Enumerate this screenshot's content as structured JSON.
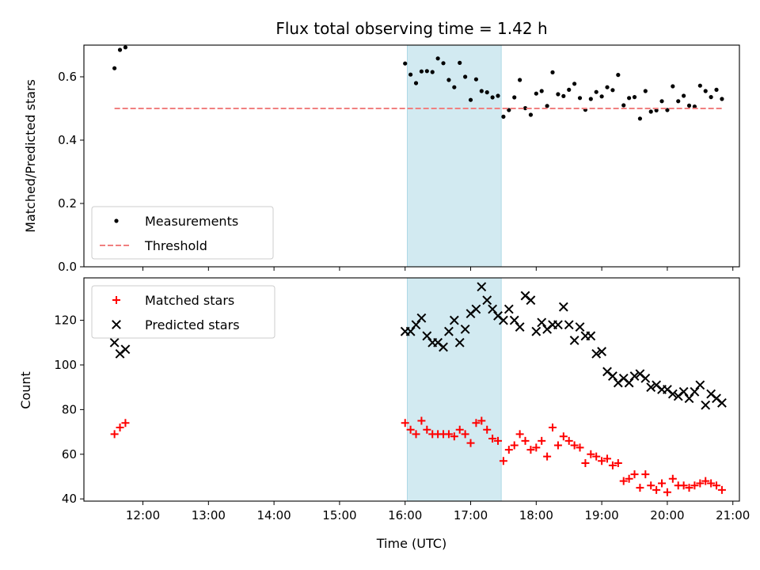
{
  "chart_data": {
    "type": "scatter",
    "title": "Flux total observing time = 1.42 h",
    "xlabel": "Time (UTC)",
    "x_unit": "hours UTC",
    "xlim": [
      "11:06",
      "21:06"
    ],
    "x_tick_labels": [
      "12:00",
      "13:00",
      "14:00",
      "15:00",
      "16:00",
      "17:00",
      "18:00",
      "19:00",
      "20:00",
      "21:00"
    ],
    "shaded_interval": [
      "16:02",
      "17:28"
    ],
    "shaded_color": "#add8e6",
    "panels": [
      {
        "id": "ratio",
        "ylabel": "Matched/Predicted stars",
        "ylim": [
          0,
          0.7
        ],
        "y_ticks": [
          "0.0",
          "0.2",
          "0.4",
          "0.6"
        ],
        "legend_position": "lower-left",
        "series": [
          {
            "name": "Measurements",
            "marker": "dot",
            "color": "#000000",
            "points": [
              [
                "11:34",
                0.627
              ],
              [
                "11:39",
                0.685
              ],
              [
                "11:44",
                0.693
              ],
              [
                "16:00",
                0.642
              ],
              [
                "16:05",
                0.607
              ],
              [
                "16:10",
                0.58
              ],
              [
                "16:15",
                0.617
              ],
              [
                "16:20",
                0.618
              ],
              [
                "16:25",
                0.615
              ],
              [
                "16:30",
                0.658
              ],
              [
                "16:35",
                0.643
              ],
              [
                "16:40",
                0.59
              ],
              [
                "16:45",
                0.567
              ],
              [
                "16:50",
                0.644
              ],
              [
                "16:55",
                0.6
              ],
              [
                "17:00",
                0.527
              ],
              [
                "17:05",
                0.592
              ],
              [
                "17:10",
                0.555
              ],
              [
                "17:15",
                0.551
              ],
              [
                "17:20",
                0.535
              ],
              [
                "17:25",
                0.54
              ],
              [
                "17:30",
                0.474
              ],
              [
                "17:35",
                0.495
              ],
              [
                "17:40",
                0.535
              ],
              [
                "17:45",
                0.59
              ],
              [
                "17:50",
                0.501
              ],
              [
                "17:55",
                0.48
              ],
              [
                "18:00",
                0.547
              ],
              [
                "18:05",
                0.555
              ],
              [
                "18:10",
                0.508
              ],
              [
                "18:15",
                0.614
              ],
              [
                "18:20",
                0.545
              ],
              [
                "18:25",
                0.539
              ],
              [
                "18:30",
                0.559
              ],
              [
                "18:35",
                0.578
              ],
              [
                "18:40",
                0.533
              ],
              [
                "18:45",
                0.496
              ],
              [
                "18:50",
                0.53
              ],
              [
                "18:55",
                0.552
              ],
              [
                "19:00",
                0.538
              ],
              [
                "19:05",
                0.567
              ],
              [
                "19:10",
                0.558
              ],
              [
                "19:15",
                0.606
              ],
              [
                "19:20",
                0.51
              ],
              [
                "19:25",
                0.533
              ],
              [
                "19:30",
                0.536
              ],
              [
                "19:35",
                0.468
              ],
              [
                "19:40",
                0.555
              ],
              [
                "19:45",
                0.49
              ],
              [
                "19:50",
                0.494
              ],
              [
                "19:55",
                0.523
              ],
              [
                "20:00",
                0.495
              ],
              [
                "20:05",
                0.57
              ],
              [
                "20:10",
                0.523
              ],
              [
                "20:15",
                0.54
              ],
              [
                "20:20",
                0.509
              ],
              [
                "20:25",
                0.506
              ],
              [
                "20:30",
                0.572
              ],
              [
                "20:35",
                0.555
              ],
              [
                "20:40",
                0.536
              ],
              [
                "20:45",
                0.559
              ],
              [
                "20:50",
                0.53
              ]
            ]
          },
          {
            "name": "Threshold",
            "marker": "dashed-line",
            "color": "#f08080",
            "points": [
              [
                "11:34",
                0.5
              ],
              [
                "20:50",
                0.5
              ]
            ]
          }
        ]
      },
      {
        "id": "counts",
        "ylabel": "Count",
        "ylim": [
          39,
          139
        ],
        "y_ticks": [
          "40",
          "60",
          "80",
          "100",
          "120"
        ],
        "legend_position": "upper-left",
        "series": [
          {
            "name": "Matched stars",
            "marker": "plus",
            "color": "#ff0000",
            "points": [
              [
                "11:34",
                69
              ],
              [
                "11:39",
                72
              ],
              [
                "11:44",
                74
              ],
              [
                "16:00",
                74
              ],
              [
                "16:05",
                71
              ],
              [
                "16:10",
                69
              ],
              [
                "16:15",
                75
              ],
              [
                "16:20",
                71
              ],
              [
                "16:25",
                69
              ],
              [
                "16:30",
                69
              ],
              [
                "16:35",
                69
              ],
              [
                "16:40",
                69
              ],
              [
                "16:45",
                68
              ],
              [
                "16:50",
                71
              ],
              [
                "16:55",
                69
              ],
              [
                "17:00",
                65
              ],
              [
                "17:05",
                74
              ],
              [
                "17:10",
                75
              ],
              [
                "17:15",
                71
              ],
              [
                "17:20",
                67
              ],
              [
                "17:25",
                66
              ],
              [
                "17:30",
                57
              ],
              [
                "17:35",
                62
              ],
              [
                "17:40",
                64
              ],
              [
                "17:45",
                69
              ],
              [
                "17:50",
                66
              ],
              [
                "17:55",
                62
              ],
              [
                "18:00",
                63
              ],
              [
                "18:05",
                66
              ],
              [
                "18:10",
                59
              ],
              [
                "18:15",
                72
              ],
              [
                "18:20",
                64
              ],
              [
                "18:25",
                68
              ],
              [
                "18:30",
                66
              ],
              [
                "18:35",
                64
              ],
              [
                "18:40",
                63
              ],
              [
                "18:45",
                56
              ],
              [
                "18:50",
                60
              ],
              [
                "18:55",
                59
              ],
              [
                "19:00",
                57
              ],
              [
                "19:05",
                58
              ],
              [
                "19:10",
                55
              ],
              [
                "19:15",
                56
              ],
              [
                "19:20",
                48
              ],
              [
                "19:25",
                49
              ],
              [
                "19:30",
                51
              ],
              [
                "19:35",
                45
              ],
              [
                "19:40",
                51
              ],
              [
                "19:45",
                46
              ],
              [
                "19:50",
                44
              ],
              [
                "19:55",
                47
              ],
              [
                "20:00",
                43
              ],
              [
                "20:05",
                49
              ],
              [
                "20:10",
                46
              ],
              [
                "20:15",
                46
              ],
              [
                "20:20",
                45
              ],
              [
                "20:25",
                46
              ],
              [
                "20:30",
                47
              ],
              [
                "20:35",
                48
              ],
              [
                "20:40",
                47
              ],
              [
                "20:45",
                46
              ],
              [
                "20:50",
                44
              ]
            ]
          },
          {
            "name": "Predicted stars",
            "marker": "x",
            "color": "#000000",
            "points": [
              [
                "11:34",
                110
              ],
              [
                "11:39",
                105
              ],
              [
                "11:44",
                107
              ],
              [
                "16:00",
                115
              ],
              [
                "16:05",
                115
              ],
              [
                "16:10",
                118
              ],
              [
                "16:15",
                121
              ],
              [
                "16:20",
                113
              ],
              [
                "16:25",
                110
              ],
              [
                "16:30",
                110
              ],
              [
                "16:35",
                108
              ],
              [
                "16:40",
                115
              ],
              [
                "16:45",
                120
              ],
              [
                "16:50",
                110
              ],
              [
                "16:55",
                116
              ],
              [
                "17:00",
                123
              ],
              [
                "17:05",
                125
              ],
              [
                "17:10",
                135
              ],
              [
                "17:15",
                129
              ],
              [
                "17:20",
                125
              ],
              [
                "17:25",
                122
              ],
              [
                "17:30",
                120
              ],
              [
                "17:35",
                125
              ],
              [
                "17:40",
                120
              ],
              [
                "17:45",
                117
              ],
              [
                "17:50",
                131
              ],
              [
                "17:55",
                129
              ],
              [
                "18:00",
                115
              ],
              [
                "18:05",
                119
              ],
              [
                "18:10",
                116
              ],
              [
                "18:15",
                118
              ],
              [
                "18:20",
                118
              ],
              [
                "18:25",
                126
              ],
              [
                "18:30",
                118
              ],
              [
                "18:35",
                111
              ],
              [
                "18:40",
                117
              ],
              [
                "18:45",
                113
              ],
              [
                "18:50",
                113
              ],
              [
                "18:55",
                105
              ],
              [
                "19:00",
                106
              ],
              [
                "19:05",
                97
              ],
              [
                "19:10",
                95
              ],
              [
                "19:15",
                92
              ],
              [
                "19:20",
                94
              ],
              [
                "19:25",
                92
              ],
              [
                "19:30",
                95
              ],
              [
                "19:35",
                96
              ],
              [
                "19:40",
                94
              ],
              [
                "19:45",
                90
              ],
              [
                "19:50",
                91
              ],
              [
                "19:55",
                89
              ],
              [
                "20:00",
                89
              ],
              [
                "20:05",
                87
              ],
              [
                "20:10",
                86
              ],
              [
                "20:15",
                88
              ],
              [
                "20:20",
                85
              ],
              [
                "20:25",
                88
              ],
              [
                "20:30",
                91
              ],
              [
                "20:35",
                82
              ],
              [
                "20:40",
                87
              ],
              [
                "20:45",
                85
              ],
              [
                "20:50",
                83
              ]
            ]
          }
        ]
      }
    ]
  }
}
